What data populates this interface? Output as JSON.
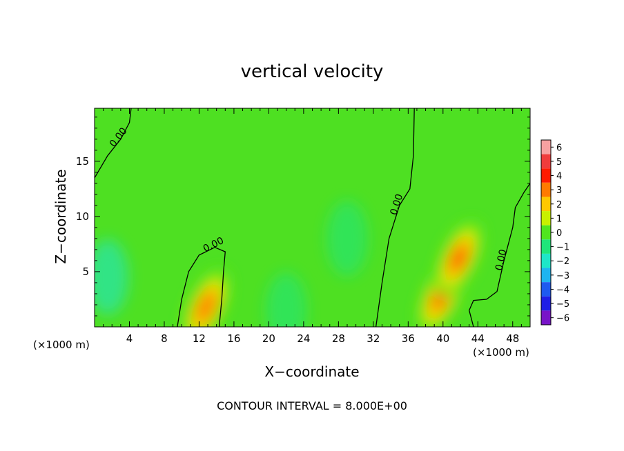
{
  "chart_data": {
    "type": "heatmap",
    "title": "vertical velocity",
    "xlabel": "X−coordinate",
    "ylabel": "Z−coordinate",
    "x_unit": "(×1000 m)",
    "xlim": [
      0,
      50
    ],
    "ylim": [
      0,
      19.8
    ],
    "x_ticks": [
      4,
      8,
      12,
      16,
      20,
      24,
      28,
      32,
      36,
      40,
      44,
      48
    ],
    "x_tick_labels": [
      "4",
      "8",
      "12",
      "16",
      "20",
      "24",
      "28",
      "32",
      "36",
      "40",
      "44",
      "48"
    ],
    "y_ticks": [
      5,
      10,
      15
    ],
    "y_tick_labels": [
      "5",
      "10",
      "15"
    ],
    "colorbar": {
      "levels": [
        6,
        5,
        4,
        3,
        2,
        1,
        0,
        -1,
        -2,
        -3,
        -4,
        -5,
        -6
      ],
      "labels": [
        "6",
        "5",
        "4",
        "3",
        "2",
        "1",
        "0",
        "−1",
        "−2",
        "−3",
        "−4",
        "−5",
        "−6"
      ],
      "colors": [
        "#f7a1a1",
        "#f03c3c",
        "#ff1a00",
        "#ff7a00",
        "#ffc800",
        "#c8f000",
        "#50e61e",
        "#1ee67a",
        "#1ee6c8",
        "#1eb4f0",
        "#1e5af0",
        "#1e1ee6",
        "#7814c8"
      ]
    },
    "field_features": [
      {
        "kind": "updraft",
        "x": 12.8,
        "z": 1.8,
        "peak": 2.5
      },
      {
        "kind": "updraft",
        "x": 39.8,
        "z": 2.8,
        "peak": 4.0
      },
      {
        "kind": "updraft",
        "x": 41.8,
        "z": 6.2,
        "peak": 3.5
      },
      {
        "kind": "downdraft",
        "x": 1.5,
        "z": 4.5,
        "peak": -1.6
      },
      {
        "kind": "downdraft",
        "x": 29.0,
        "z": 8.0,
        "peak": -1.0
      },
      {
        "kind": "downdraft",
        "x": 22.0,
        "z": 1.5,
        "peak": -0.7
      }
    ],
    "contours": [
      {
        "value": 0.0,
        "label": "0.00",
        "points": [
          [
            0,
            13.5
          ],
          [
            1.5,
            15.5
          ],
          [
            3.0,
            17.0
          ],
          [
            4.0,
            18.5
          ],
          [
            4.2,
            19.8
          ]
        ]
      },
      {
        "value": 0.0,
        "label": "0.00",
        "points": [
          [
            9.5,
            0
          ],
          [
            10.0,
            2.5
          ],
          [
            10.8,
            5.0
          ],
          [
            12.0,
            6.5
          ],
          [
            13.8,
            7.2
          ],
          [
            15.0,
            6.8
          ],
          [
            14.8,
            5.0
          ],
          [
            14.6,
            2.5
          ],
          [
            14.3,
            0
          ]
        ]
      },
      {
        "value": 0.0,
        "label": "0.00",
        "points": [
          [
            32.3,
            0
          ],
          [
            33.0,
            4.0
          ],
          [
            33.8,
            8.0
          ],
          [
            35.0,
            11.0
          ],
          [
            36.2,
            12.5
          ],
          [
            36.6,
            15.5
          ],
          [
            36.7,
            19.8
          ]
        ]
      },
      {
        "value": 0.0,
        "label": "0.00",
        "points": [
          [
            43.5,
            0
          ],
          [
            43.0,
            1.5
          ],
          [
            43.5,
            2.4
          ],
          [
            45.0,
            2.5
          ],
          [
            46.2,
            3.2
          ],
          [
            47.0,
            6.0
          ],
          [
            48.0,
            9.0
          ],
          [
            48.3,
            10.8
          ],
          [
            49.3,
            12.2
          ],
          [
            50,
            13.0
          ]
        ]
      }
    ],
    "footer": "CONTOUR INTERVAL =  8.000E+00"
  }
}
